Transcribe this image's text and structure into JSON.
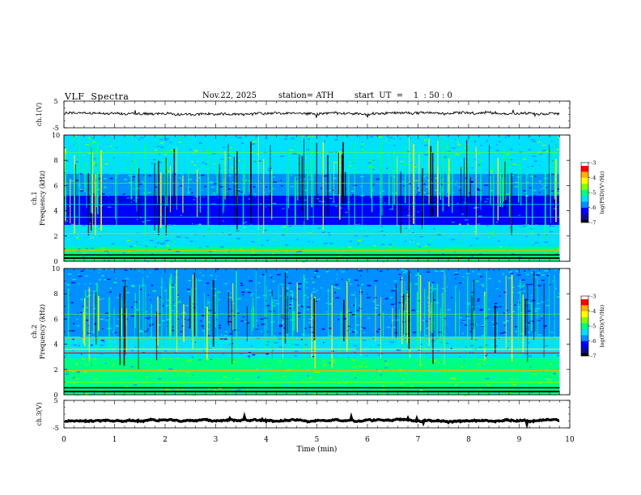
{
  "header": {
    "title": "VLF  Spectra",
    "date": "Nov.22, 2025",
    "station": "station= ATH",
    "start": "start  UT  =    1  : 50 : 0"
  },
  "colors": {
    "colormap": [
      "#000000",
      "#0a0a9a",
      "#0000ff",
      "#0090ff",
      "#00e0ff",
      "#00ff80",
      "#80ff00",
      "#ffff00",
      "#ffb000",
      "#ff0000",
      "#ffffff"
    ],
    "trace": "#000000"
  },
  "chart_data": [
    {
      "type": "line",
      "panel": "ch1-waveform",
      "ylabel": "ch.1(V)",
      "ylim": [
        -5,
        5
      ],
      "yticks": [
        "5",
        "-5"
      ],
      "xlim": [
        0,
        10
      ],
      "note_level": 0.3
    },
    {
      "type": "heatmap",
      "panel": "ch1-spectrogram",
      "ylabel_line1": "ch.1",
      "ylabel_line2": "Frequency  (kHz)",
      "ylim": [
        0,
        10
      ],
      "yticks": [
        "0",
        "2",
        "4",
        "6",
        "8",
        "10"
      ],
      "xlim": [
        0,
        9.8
      ],
      "colorbar": {
        "label": "log(PSD)(V²/Hz)",
        "ticks": [
          "-3",
          "-4",
          "-5",
          "-6",
          "-7"
        ],
        "range": [
          -7,
          -3
        ]
      }
    },
    {
      "type": "heatmap",
      "panel": "ch2-spectrogram",
      "ylabel_line1": "ch.2",
      "ylabel_line2": "Frequency  (kHz)",
      "ylim": [
        0,
        10
      ],
      "yticks": [
        "0",
        "2",
        "4",
        "6",
        "8",
        "10"
      ],
      "xlim": [
        0,
        9.8
      ],
      "colorbar": {
        "label": "log(PSD)(V²/Hz)",
        "ticks": [
          "-3",
          "-4",
          "-5",
          "-6",
          "-7"
        ],
        "range": [
          -7,
          -3
        ]
      }
    },
    {
      "type": "line",
      "panel": "ch3-waveform",
      "ylabel": "ch.3(V)",
      "ylim": [
        -5,
        5
      ],
      "yticks": [
        "5",
        "-5"
      ],
      "xlim": [
        0,
        10
      ],
      "xlabel": "Time  (min)",
      "xticks": [
        "0",
        "1",
        "2",
        "3",
        "4",
        "5",
        "6",
        "7",
        "8",
        "9",
        "10"
      ],
      "level": -2.3
    }
  ]
}
